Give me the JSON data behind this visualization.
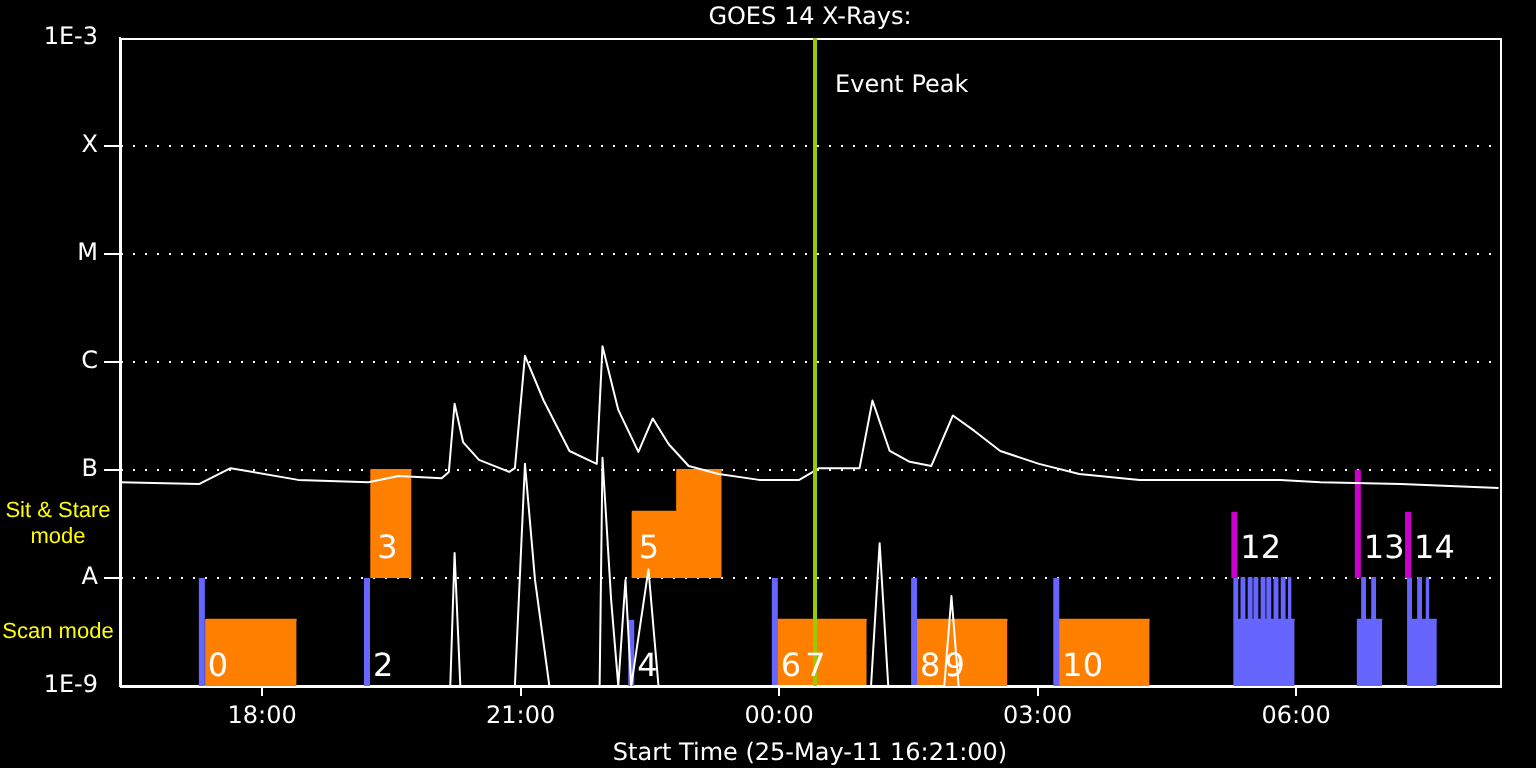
{
  "chart_data": {
    "type": "line",
    "title": "GOES 14 X-Rays:",
    "xlabel": "Start Time (25-May-11 16:21:00)",
    "log": "y",
    "grid": "y",
    "legend": false,
    "xlim": [
      "--05-25T16:21",
      "--05-26T08:22"
    ],
    "xticks": [
      {
        "value": "--05-25T18:00",
        "label": "18:00"
      },
      {
        "value": "--05-25T21:00",
        "label": "21:00"
      },
      {
        "value": "--05-26T00:00",
        "label": "00:00"
      },
      {
        "value": "--05-26T03:00",
        "label": "03:00"
      },
      {
        "value": "--05-26T06:00",
        "label": "06:00"
      }
    ],
    "ylim": [
      1e-09,
      0.001
    ],
    "yticks": [
      {
        "value": 1e-09,
        "label": "1E-9"
      },
      {
        "value": 1e-08,
        "label": "A"
      },
      {
        "value": 1e-07,
        "label": "B"
      },
      {
        "value": 1e-06,
        "label": "C"
      },
      {
        "value": 1e-05,
        "label": "M"
      },
      {
        "value": 0.0001,
        "label": "X"
      },
      {
        "value": 0.001,
        "label": "1E-3"
      }
    ],
    "ref_lines": [
      {
        "axis": "x",
        "value": "--05-26T00:25",
        "label": "Event Peak",
        "color": "#99cc00"
      }
    ],
    "annotations": [
      "Sit & Stare mode",
      "Scan mode"
    ],
    "series": [
      {
        "type": "area",
        "color": "#ff8000",
        "x": [
          "--05-25T17:21",
          "--05-25T17:21",
          "--05-25T18:24"
        ],
        "values": [
          1e-09,
          4.1e-09,
          4.1e-09
        ]
      },
      {
        "type": "area",
        "name": "3",
        "color": "#ff8000",
        "x": [
          "--05-25T19:16",
          "--05-25T19:16",
          "--05-25T19:44"
        ],
        "values": [
          1e-08,
          1e-07,
          1e-07
        ]
      },
      {
        "type": "area",
        "name": "5",
        "color": "#ff8000",
        "x": [
          "--05-25T22:18",
          "--05-25T22:18",
          "--05-25T22:49",
          "--05-25T22:49",
          "--05-25T23:20"
        ],
        "values": [
          1e-08,
          4.1e-08,
          4.1e-08,
          1e-07,
          1e-07
        ]
      },
      {
        "type": "area",
        "name": "7",
        "color": "#ff8000",
        "x": [
          "--05-25T23:59",
          "--05-25T23:59",
          "--05-26T01:01"
        ],
        "values": [
          1e-09,
          4.1e-09,
          4.1e-09
        ]
      },
      {
        "type": "area",
        "name": "9",
        "color": "#ff8000",
        "x": [
          "--05-26T01:36",
          "--05-26T01:36",
          "--05-26T02:39"
        ],
        "values": [
          1e-09,
          4.1e-09,
          4.1e-09
        ]
      },
      {
        "type": "area",
        "color": "#ff8000",
        "x": [
          "--05-26T03:14",
          "--05-26T03:14",
          "--05-26T04:18"
        ],
        "values": [
          1e-09,
          4.1e-09,
          4.1e-09
        ]
      },
      {
        "name": "0",
        "color": "#6666ff",
        "x": [
          "--05-25T17:18",
          "--05-25T17:18"
        ],
        "values": [
          1e-09,
          1e-08
        ]
      },
      {
        "name": "2",
        "color": "#6666ff",
        "x": [
          "--05-25T19:13",
          "--05-25T19:13"
        ],
        "values": [
          1e-09,
          1e-08
        ]
      },
      {
        "name": "4",
        "color": "#6666ff",
        "x": [
          "--05-25T22:17",
          "--05-25T22:17"
        ],
        "values": [
          1e-09,
          4.1e-09
        ]
      },
      {
        "name": "6",
        "color": "#6666ff",
        "x": [
          "--05-25T23:57",
          "--05-25T23:57"
        ],
        "values": [
          1e-09,
          1e-08
        ]
      },
      {
        "name": "8",
        "color": "#6666ff",
        "x": [
          "--05-26T01:34",
          "--05-26T01:34"
        ],
        "values": [
          1e-09,
          1e-08
        ]
      },
      {
        "name": "10",
        "color": "#6666ff",
        "x": [
          "--05-26T03:13",
          "--05-26T03:13"
        ],
        "values": [
          1e-09,
          1e-08
        ]
      },
      {
        "type": "area",
        "color": "#6666ff",
        "x": [
          "--05-26T05:17",
          "--05-26T05:17",
          "--05-26T05:19",
          "--05-26T05:19",
          "--05-26T05:22",
          "--05-26T05:22",
          "--05-26T05:24",
          "--05-26T05:24",
          "--05-26T05:27",
          "--05-26T05:27",
          "--05-26T05:29",
          "--05-26T05:29",
          "--05-26T05:31",
          "--05-26T05:31",
          "--05-26T05:33",
          "--05-26T05:33",
          "--05-26T05:36",
          "--05-26T05:36",
          "--05-26T05:38",
          "--05-26T05:38",
          "--05-26T05:40",
          "--05-26T05:40",
          "--05-26T05:42",
          "--05-26T05:42",
          "--05-26T05:45",
          "--05-26T05:45",
          "--05-26T05:47",
          "--05-26T05:47",
          "--05-26T05:50",
          "--05-26T05:50",
          "--05-26T05:52",
          "--05-26T05:52",
          "--05-26T05:55",
          "--05-26T05:55",
          "--05-26T05:56",
          "--05-26T05:56",
          "--05-26T05:59"
        ],
        "values": [
          1e-09,
          1e-08,
          1e-08,
          4.1e-09,
          4.1e-09,
          1e-08,
          1e-08,
          4.1e-09,
          4.1e-09,
          1e-08,
          1e-08,
          4.1e-09,
          4.1e-09,
          1e-08,
          1e-08,
          4.1e-09,
          4.1e-09,
          1e-08,
          1e-08,
          4.1e-09,
          4.1e-09,
          1e-08,
          1e-08,
          4.1e-09,
          4.1e-09,
          1e-08,
          1e-08,
          4.1e-09,
          4.1e-09,
          1e-08,
          1e-08,
          4.1e-09,
          4.1e-09,
          1e-08,
          1e-08,
          4.1e-09,
          4.1e-09
        ]
      },
      {
        "type": "area",
        "color": "#6666ff",
        "x": [
          "--05-26T06:43",
          "--05-26T06:43",
          "--05-26T06:46",
          "--05-26T06:46",
          "--05-26T06:48",
          "--05-26T06:48",
          "--05-26T06:53",
          "--05-26T06:53",
          "--05-26T06:55",
          "--05-26T06:55",
          "--05-26T07:00"
        ],
        "values": [
          1e-09,
          4.1e-09,
          4.1e-09,
          1e-08,
          1e-08,
          4.1e-09,
          4.1e-09,
          1e-08,
          1e-08,
          4.1e-09,
          4.1e-09
        ]
      },
      {
        "type": "area",
        "color": "#6666ff",
        "x": [
          "--05-26T07:18",
          "--05-26T07:18",
          "--05-26T07:20",
          "--05-26T07:20",
          "--05-26T07:25",
          "--05-26T07:25",
          "--05-26T07:27",
          "--05-26T07:27",
          "--05-26T07:31",
          "--05-26T07:31",
          "--05-26T07:32",
          "--05-26T07:32",
          "--05-26T07:38"
        ],
        "values": [
          1e-09,
          1e-08,
          1e-08,
          4.1e-09,
          4.1e-09,
          1e-08,
          1e-08,
          4.1e-09,
          4.1e-09,
          1e-08,
          1e-08,
          4.1e-09,
          4.1e-09
        ]
      },
      {
        "name": "12",
        "color": "#cc00cc",
        "x": [
          "--05-26T05:17",
          "--05-26T05:17"
        ],
        "values": [
          1e-08,
          4.1e-08
        ]
      },
      {
        "name": "13",
        "color": "#cc00cc",
        "x": [
          "--05-26T06:43",
          "--05-26T06:43"
        ],
        "values": [
          1e-08,
          1e-07
        ]
      },
      {
        "name": "14",
        "color": "#cc00cc",
        "x": [
          "--05-26T07:18",
          "--05-26T07:18"
        ],
        "values": [
          1e-08,
          4.1e-08
        ]
      },
      {
        "color": "#ffffff",
        "x": [
          "--05-25T20:11",
          "--05-25T20:14",
          "--05-25T20:18",
          "--05-25T20:56",
          "--05-25T21:03",
          "--05-25T21:10",
          "--05-25T21:20",
          "--05-25T21:55",
          "--05-25T21:57",
          "--05-25T22:03",
          "--05-25T22:08",
          "--05-25T22:13",
          "--05-25T22:17",
          "--05-25T22:29",
          "--05-25T22:36",
          "--05-26T01:04",
          "--05-26T01:10",
          "--05-26T01:16",
          "--05-26T01:55",
          "--05-26T02:00",
          "--05-26T02:05"
        ],
        "values": [
          1e-09,
          1.7e-08,
          1e-09,
          1e-09,
          1.14e-07,
          9.6e-09,
          1e-09,
          1e-09,
          1.3e-07,
          6.3e-09,
          1e-09,
          9.6e-09,
          1e-09,
          1.2e-08,
          1e-09,
          1e-09,
          2.1e-08,
          1e-09,
          1e-09,
          6.8e-09,
          1e-09
        ]
      },
      {
        "color": "#ffffff",
        "x": [
          "--05-25T16:21",
          "--05-25T17:16",
          "--05-25T17:38",
          "--05-25T18:25",
          "--05-25T19:14",
          "--05-25T19:35",
          "--05-25T20:05",
          "--05-25T20:10",
          "--05-25T20:14",
          "--05-25T20:20",
          "--05-25T20:31",
          "--05-25T20:52",
          "--05-25T20:56",
          "--05-25T21:03",
          "--05-25T21:16",
          "--05-25T21:34",
          "--05-25T21:47",
          "--05-25T21:53",
          "--05-25T21:57",
          "--05-25T22:08",
          "--05-25T22:22",
          "--05-25T22:32",
          "--05-25T22:43",
          "--05-25T22:57",
          "--05-25T23:18",
          "--05-25T23:46",
          "--05-26T00:14",
          "--05-26T00:28",
          "--05-26T00:56",
          "--05-26T01:05",
          "--05-26T01:17",
          "--05-26T01:31",
          "--05-26T01:46",
          "--05-26T02:01",
          "--05-26T02:16",
          "--05-26T02:34",
          "--05-26T03:01",
          "--05-26T03:29",
          "--05-26T04:11",
          "--05-26T04:53",
          "--05-26T05:49",
          "--05-26T06:17",
          "--05-26T07:13",
          "--05-26T08:21"
        ],
        "values": [
          7.7e-08,
          7.4e-08,
          1.04e-07,
          8.1e-08,
          7.7e-08,
          8.8e-08,
          8.4e-08,
          9.6e-08,
          4.1e-07,
          1.8e-07,
          1.24e-07,
          9.6e-08,
          1.04e-07,
          1.14e-06,
          4.4e-07,
          1.5e-07,
          1.24e-07,
          1.14e-07,
          1.4e-06,
          3.6e-07,
          1.47e-07,
          3e-07,
          1.74e-07,
          1.09e-07,
          9.2e-08,
          8.1e-08,
          8.1e-08,
          1.04e-07,
          1.04e-07,
          4.4e-07,
          1.5e-07,
          1.19e-07,
          1.09e-07,
          3.2e-07,
          2.3e-07,
          1.5e-07,
          1.14e-07,
          9.2e-08,
          8.1e-08,
          8.1e-08,
          8.1e-08,
          7.7e-08,
          7.4e-08,
          6.8e-08
        ]
      }
    ]
  }
}
